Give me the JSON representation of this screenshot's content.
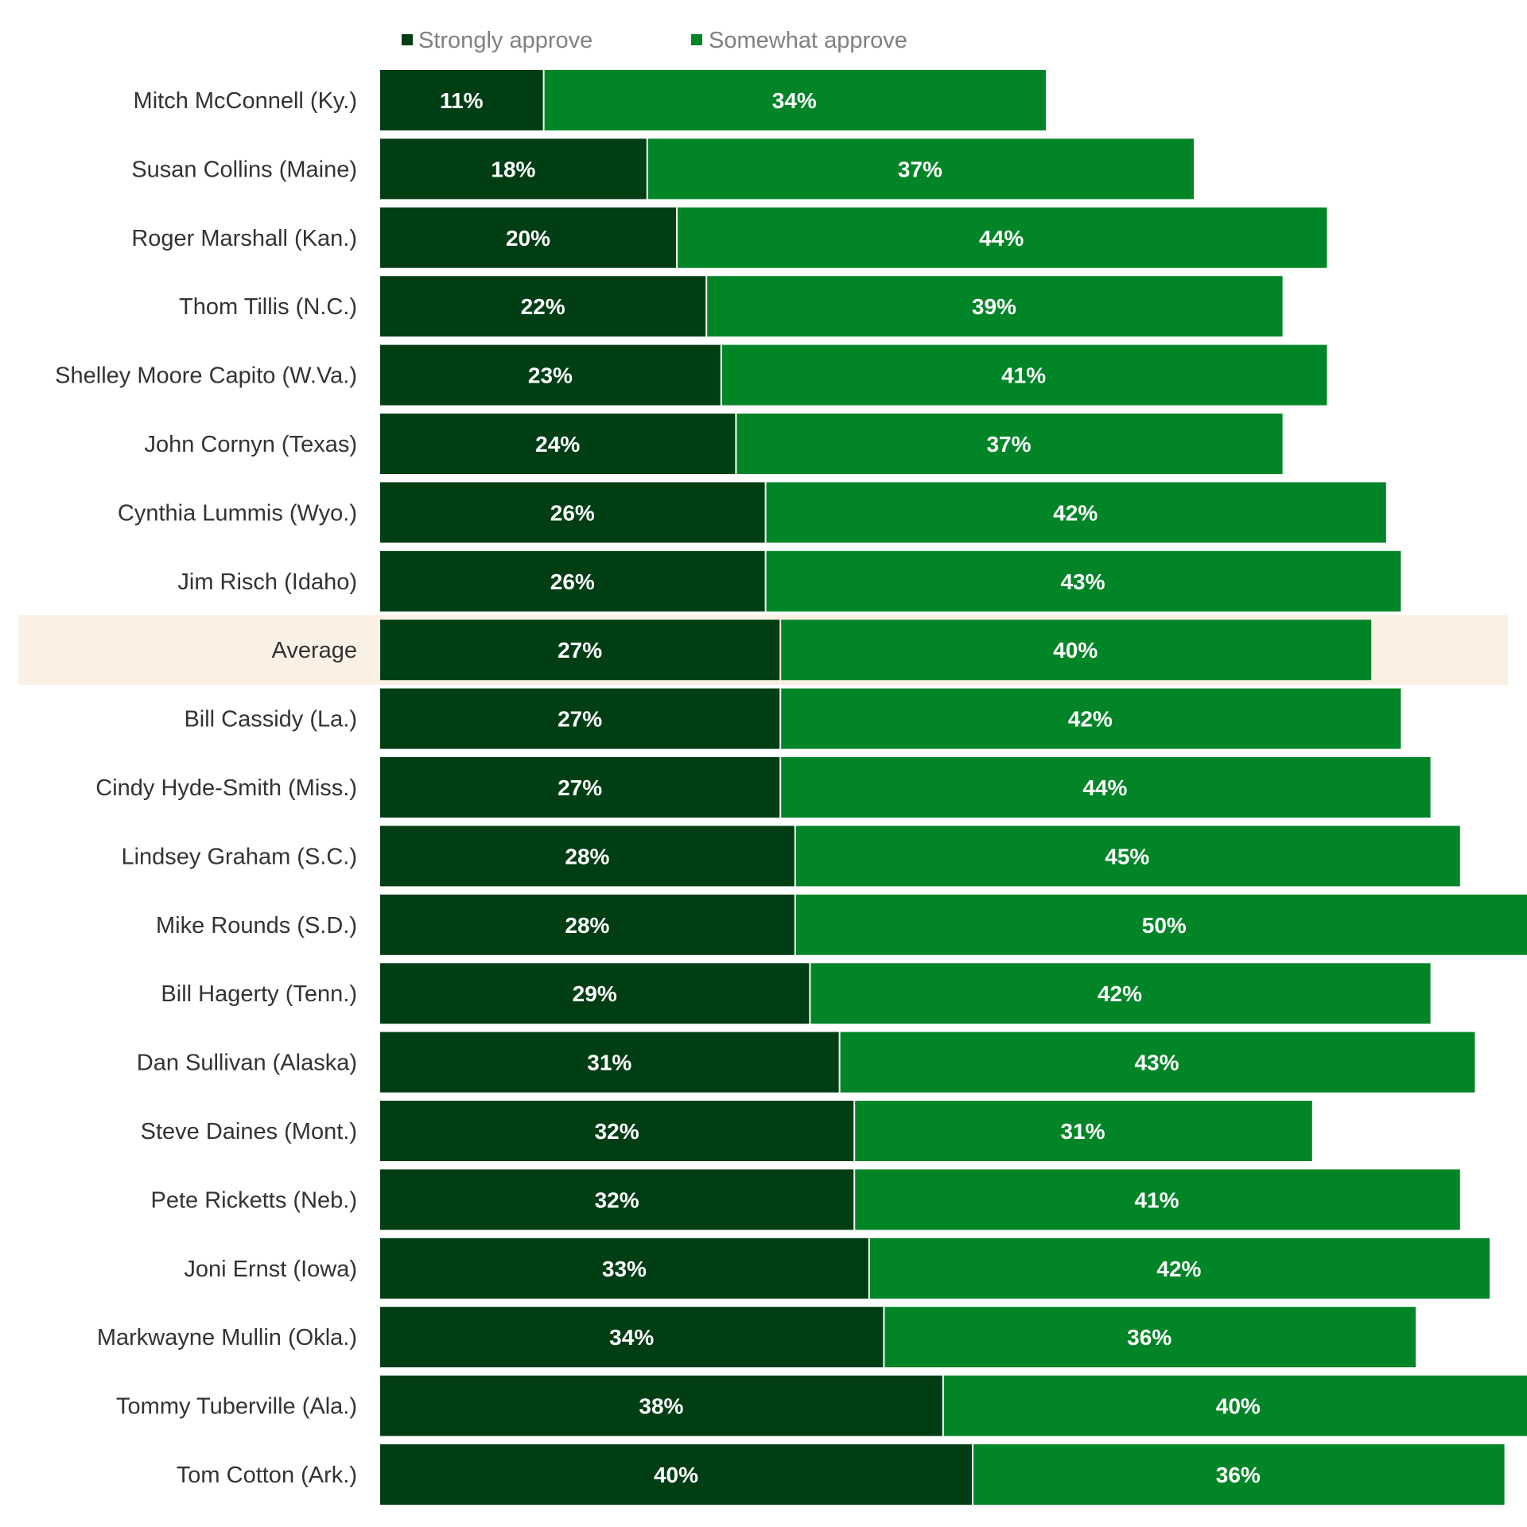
{
  "chart_data": {
    "type": "bar",
    "orientation": "horizontal",
    "stacked": true,
    "title": "",
    "xlabel": "",
    "ylabel": "",
    "grid": false,
    "legend_position": "top",
    "xlim": [
      0,
      78
    ],
    "categories": [
      "Mitch McConnell (Ky.)",
      "Susan Collins (Maine)",
      "Roger Marshall (Kan.)",
      "Thom Tillis (N.C.)",
      "Shelley Moore Capito (W.Va.)",
      "John Cornyn (Texas)",
      "Cynthia Lummis (Wyo.)",
      "Jim Risch (Idaho)",
      "Average",
      "Bill Cassidy (La.)",
      "Cindy Hyde-Smith (Miss.)",
      "Lindsey Graham (S.C.)",
      "Mike Rounds (S.D.)",
      "Bill Hagerty (Tenn.)",
      "Dan Sullivan (Alaska)",
      "Steve Daines (Mont.)",
      "Pete Ricketts (Neb.)",
      "Joni Ernst (Iowa)",
      "Markwayne Mullin (Okla.)",
      "Tommy Tuberville (Ala.)",
      "Tom Cotton (Ark.)"
    ],
    "highlight_category": "Average",
    "series": [
      {
        "name": "Strongly approve",
        "color": "#013e14",
        "values": [
          11,
          18,
          20,
          22,
          23,
          24,
          26,
          26,
          27,
          27,
          27,
          28,
          28,
          29,
          31,
          32,
          32,
          33,
          34,
          38,
          40
        ]
      },
      {
        "name": "Somewhat approve",
        "color": "#028527",
        "values": [
          34,
          37,
          44,
          39,
          41,
          37,
          42,
          43,
          40,
          42,
          44,
          45,
          50,
          42,
          43,
          31,
          41,
          42,
          36,
          40,
          36
        ]
      }
    ],
    "value_labels": {
      "Strongly approve": [
        "11%",
        "18%",
        "20%",
        "22%",
        "23%",
        "24%",
        "26%",
        "26%",
        "27%",
        "27%",
        "27%",
        "28%",
        "28%",
        "29%",
        "31%",
        "32%",
        "32%",
        "33%",
        "34%",
        "38%",
        "40%"
      ],
      "Somewhat approve": [
        "34%",
        "37%",
        "44%",
        "39%",
        "41%",
        "37%",
        "42%",
        "43%",
        "40%",
        "42%",
        "44%",
        "45%",
        "50%",
        "42%",
        "43%",
        "31%",
        "41%",
        "42%",
        "36%",
        "40%",
        "36%"
      ]
    },
    "colors": {
      "highlight_background": "#faf1e4",
      "value_label_text": "#ffffff",
      "category_label_text": "#333333",
      "legend_text": "#808080"
    }
  }
}
